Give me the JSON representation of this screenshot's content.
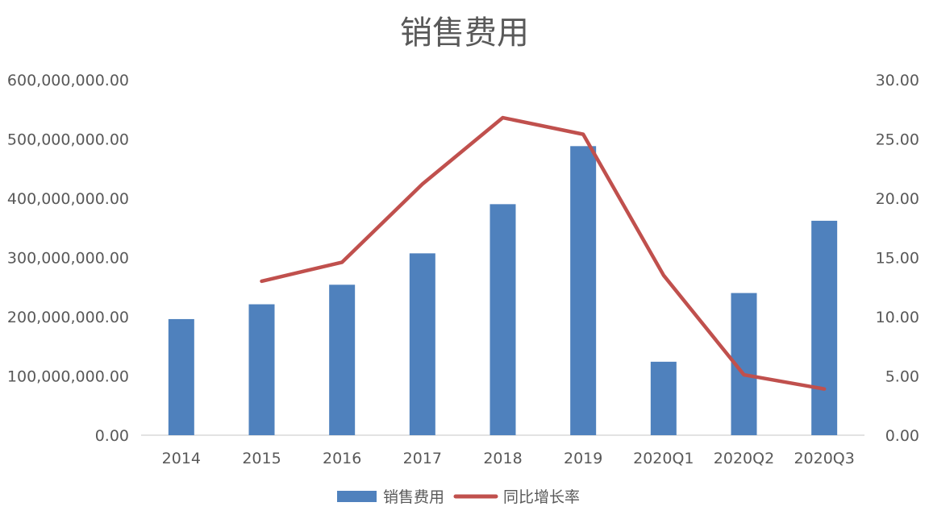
{
  "chart_data": {
    "type": "bar",
    "title": "销售费用",
    "categories": [
      "2014",
      "2015",
      "2016",
      "2017",
      "2018",
      "2019",
      "2020Q1",
      "2020Q2",
      "2020Q3"
    ],
    "series": [
      {
        "name": "销售费用",
        "type": "bar",
        "axis": "left",
        "color": "#4F81BD",
        "values": [
          196000000,
          221000000,
          254000000,
          307000000,
          390000000,
          488000000,
          124000000,
          240000000,
          362000000
        ]
      },
      {
        "name": "同比增长率",
        "type": "line",
        "axis": "right",
        "color": "#C0504D",
        "values": [
          null,
          13.0,
          14.6,
          21.2,
          26.8,
          25.4,
          13.5,
          5.1,
          3.9
        ]
      }
    ],
    "y_left": {
      "ylim": [
        0,
        600000000
      ],
      "ticks": [
        0,
        100000000,
        200000000,
        300000000,
        400000000,
        500000000,
        600000000
      ],
      "tick_labels": [
        "0.00",
        "100,000,000.00",
        "200,000,000.00",
        "300,000,000.00",
        "400,000,000.00",
        "500,000,000.00",
        "600,000,000.00"
      ]
    },
    "y_right": {
      "ylim": [
        0,
        30
      ],
      "ticks": [
        0,
        5,
        10,
        15,
        20,
        25,
        30
      ],
      "tick_labels": [
        "0.00",
        "5.00",
        "10.00",
        "15.00",
        "20.00",
        "25.00",
        "30.00"
      ]
    },
    "grid": false,
    "legend_position": "bottom"
  }
}
